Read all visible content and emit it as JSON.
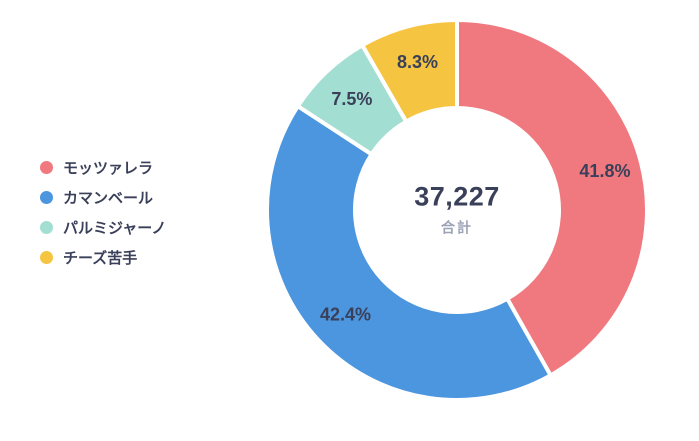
{
  "chart_data": {
    "type": "pie",
    "variant": "donut",
    "title": "",
    "categories": [
      "モッツァレラ",
      "カマンベール",
      "パルミジャーノ",
      "チーズ苦手"
    ],
    "values": [
      41.8,
      42.4,
      7.5,
      8.3
    ],
    "value_labels": [
      "41.8%",
      "42.4%",
      "7.5%",
      "8.3%"
    ],
    "colors": [
      "#F0797F",
      "#4C95DF",
      "#A3DED2",
      "#F5C542"
    ],
    "center_value": "37,227",
    "center_label": "合計",
    "legend_position": "left",
    "start_angle_deg": 0,
    "direction": "clockwise",
    "donut_hole_ratio": 0.54
  },
  "legend": {
    "items": [
      {
        "label": "モッツァレラ",
        "color": "#F0797F"
      },
      {
        "label": "カマンベール",
        "color": "#4C95DF"
      },
      {
        "label": "パルミジャーノ",
        "color": "#A3DED2"
      },
      {
        "label": "チーズ苦手",
        "color": "#F5C542"
      }
    ]
  },
  "colors": {
    "background": "#FFFFFF",
    "slice_border": "#FFFFFF",
    "slice_label_text": "#3A4059",
    "center_value_text": "#3A4059",
    "center_sub_text": "#9CA3B5",
    "legend_text": "#3A4059"
  }
}
